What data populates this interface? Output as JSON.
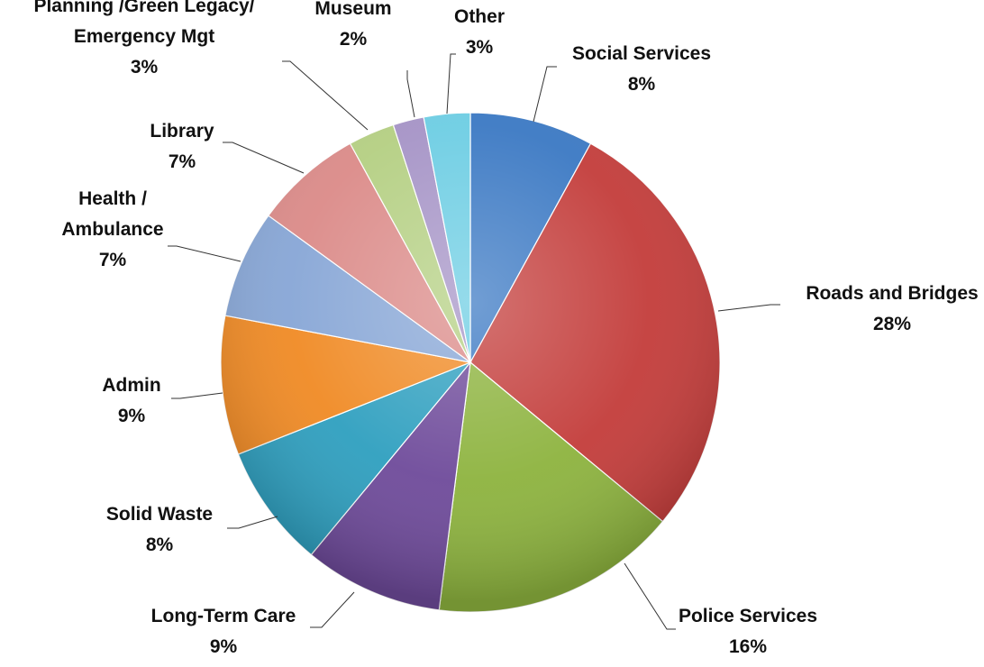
{
  "chart_data": {
    "type": "pie",
    "title": "",
    "slices": [
      {
        "label_lines": [
          "Social Services"
        ],
        "pct_label": "8%",
        "value": 8,
        "color": "#3A78C3"
      },
      {
        "label_lines": [
          "Roads and Bridges"
        ],
        "pct_label": "28%",
        "value": 28,
        "color": "#C33C3A"
      },
      {
        "label_lines": [
          "Police Services"
        ],
        "pct_label": "16%",
        "value": 16,
        "color": "#8DB33E"
      },
      {
        "label_lines": [
          "Long-Term Care"
        ],
        "pct_label": "9%",
        "value": 9,
        "color": "#6E4A9A"
      },
      {
        "label_lines": [
          "Solid Waste"
        ],
        "pct_label": "8%",
        "value": 8,
        "color": "#2E9FBF"
      },
      {
        "label_lines": [
          "Admin"
        ],
        "pct_label": "9%",
        "value": 9,
        "color": "#F08A24"
      },
      {
        "label_lines": [
          "Health /",
          "Ambulance"
        ],
        "pct_label": "7%",
        "value": 7,
        "color": "#87A6D6"
      },
      {
        "label_lines": [
          "Library"
        ],
        "pct_label": "7%",
        "value": 7,
        "color": "#DB8A88"
      },
      {
        "label_lines": [
          "Planning /Green Legacy/",
          "Emergency Mgt"
        ],
        "pct_label": "3%",
        "value": 3,
        "color": "#B4CF82"
      },
      {
        "label_lines": [
          "Museum"
        ],
        "pct_label": "2%",
        "value": 2,
        "color": "#A593C6"
      },
      {
        "label_lines": [
          "Other"
        ],
        "pct_label": "3%",
        "value": 3,
        "color": "#6CCDE3"
      }
    ]
  }
}
